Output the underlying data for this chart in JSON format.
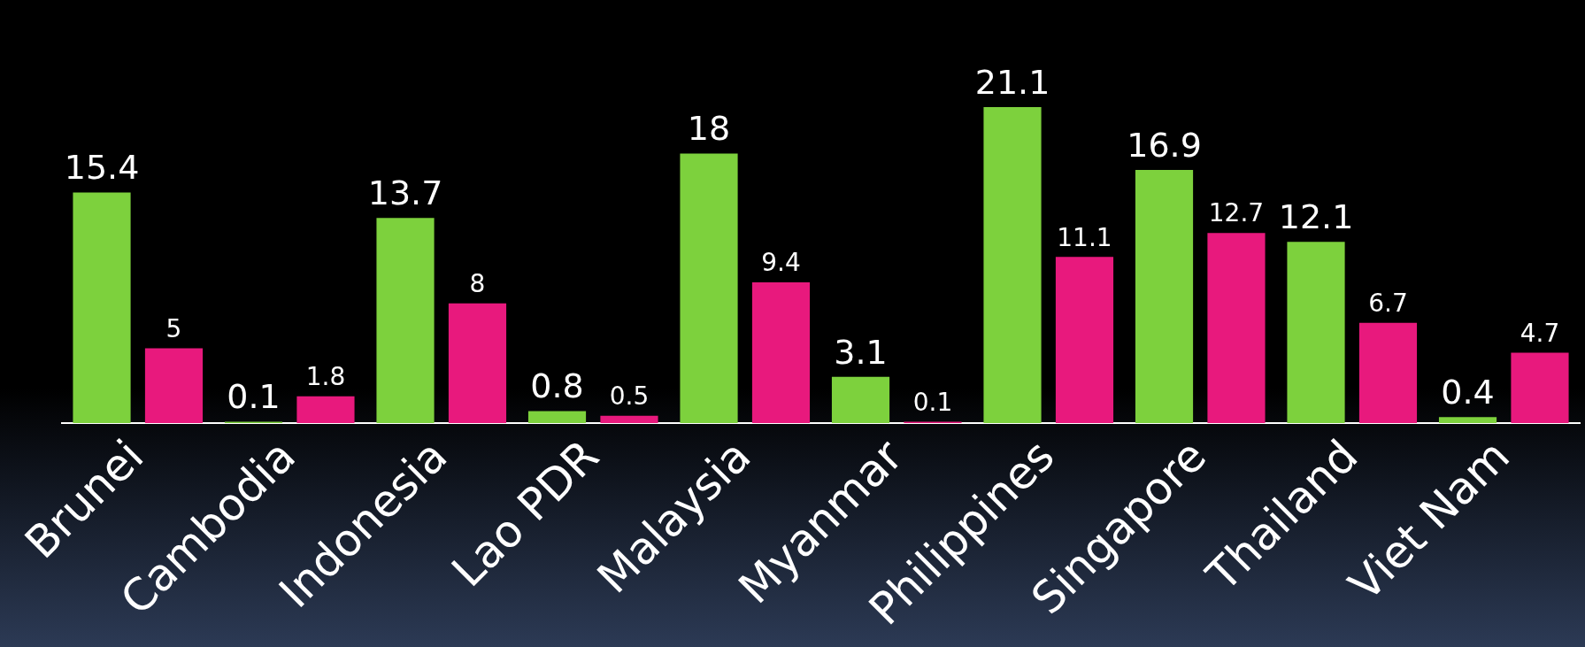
{
  "chart_data": {
    "type": "bar",
    "categories": [
      "Brunei",
      "Cambodia",
      "Indonesia",
      "Lao PDR",
      "Malaysia",
      "Myanmar",
      "Philippines",
      "Singapore",
      "Thailand",
      "Viet Nam"
    ],
    "series": [
      {
        "color": "#7dd13d",
        "values": [
          15.4,
          0.1,
          13.7,
          0.8,
          18,
          3.1,
          21.1,
          16.9,
          12.1,
          0.4
        ]
      },
      {
        "color": "#e8197d",
        "values": [
          5,
          1.8,
          8,
          0.5,
          9.4,
          0.1,
          11.1,
          12.7,
          6.7,
          4.7
        ]
      }
    ],
    "data_labels": true,
    "grid": false,
    "legend": false,
    "tick_labels": "x"
  }
}
